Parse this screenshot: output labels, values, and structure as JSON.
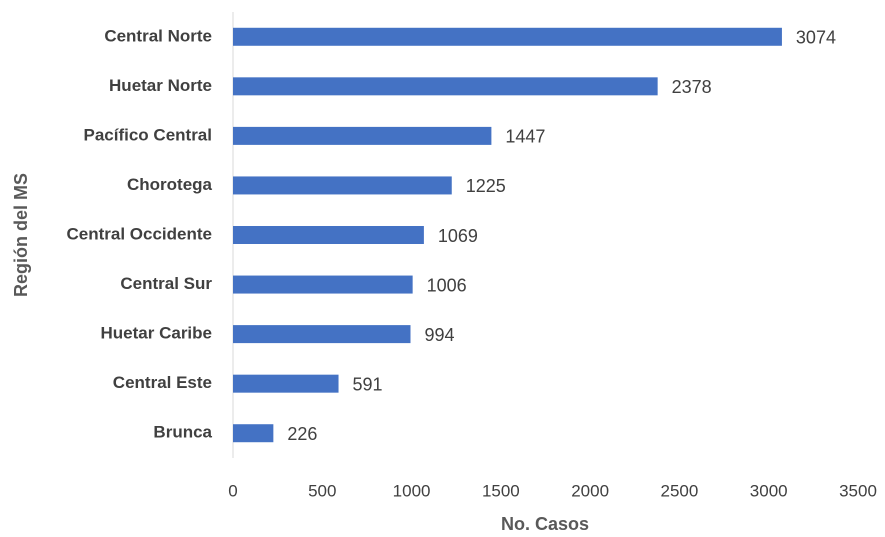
{
  "chart_data": {
    "type": "bar",
    "orientation": "horizontal",
    "xlabel": "No. Casos",
    "ylabel": "Región del MS",
    "categories": [
      "Central Norte",
      "Huetar Norte",
      "Pacífico Central",
      "Chorotega",
      "Central Occidente",
      "Central Sur",
      "Huetar Caribe",
      "Central Este",
      "Brunca"
    ],
    "values": [
      3074,
      2378,
      1447,
      1225,
      1069,
      1006,
      994,
      591,
      226
    ],
    "color": "#4472c4",
    "xlim": [
      0,
      3500
    ],
    "xticks": [
      0,
      500,
      1000,
      1500,
      2000,
      2500,
      3000,
      3500
    ],
    "grid": false
  }
}
